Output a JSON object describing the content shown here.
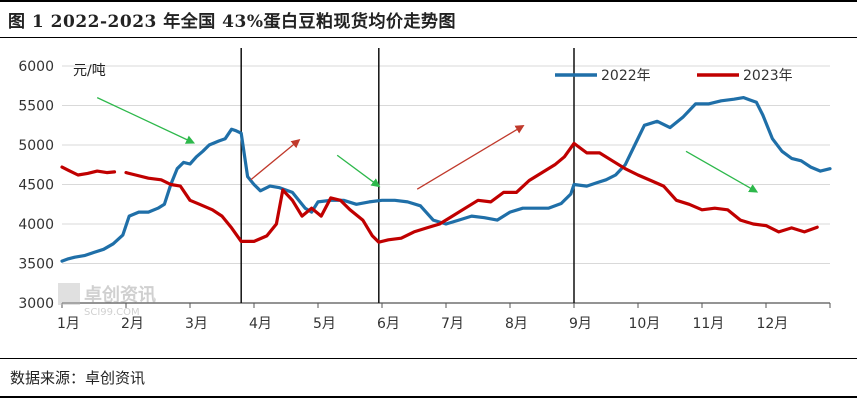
{
  "header": {
    "title": "图 1 2022-2023 年全国 43%蛋白豆粕现货均价走势图"
  },
  "footer": {
    "source": "数据来源：卓创资讯"
  },
  "watermark": {
    "brand": "卓创资讯",
    "site": "SCI99.COM"
  },
  "chart_data": {
    "type": "line",
    "ylabel": "元/吨",
    "ylim": [
      3000,
      6000
    ],
    "yticks": [
      3000,
      3500,
      4000,
      4500,
      5000,
      5500,
      6000
    ],
    "categories": [
      "1月",
      "2月",
      "3月",
      "4月",
      "5月",
      "6月",
      "7月",
      "8月",
      "9月",
      "10月",
      "11月",
      "12月"
    ],
    "xlim": [
      1,
      13
    ],
    "grid": "horizontal",
    "legend_position": "top-right",
    "vertical_markers": [
      3.8,
      5.95,
      9.0
    ],
    "colors": {
      "s2022": "#1f6fa8",
      "s2023": "#c00000",
      "arrow": "#2db84b",
      "arrow_red": "#c0392b",
      "grid": "#d9d9d9",
      "axis": "#555555"
    },
    "series": [
      {
        "name": "2022年",
        "color": "#1f6fa8",
        "x": [
          1.0,
          1.1,
          1.2,
          1.35,
          1.5,
          1.65,
          1.8,
          1.95,
          2.05,
          2.2,
          2.35,
          2.5,
          2.6,
          2.7,
          2.8,
          2.9,
          3.0,
          3.1,
          3.2,
          3.3,
          3.45,
          3.55,
          3.65,
          3.72,
          3.8,
          3.9,
          4.0,
          4.1,
          4.25,
          4.4,
          4.6,
          4.8,
          4.9,
          5.0,
          5.2,
          5.4,
          5.6,
          5.8,
          6.0,
          6.2,
          6.4,
          6.6,
          6.8,
          7.0,
          7.2,
          7.4,
          7.6,
          7.8,
          8.0,
          8.2,
          8.4,
          8.6,
          8.8,
          8.95,
          9.0,
          9.2,
          9.35,
          9.5,
          9.65,
          9.8,
          9.95,
          10.1,
          10.3,
          10.5,
          10.7,
          10.9,
          11.1,
          11.3,
          11.5,
          11.65,
          11.75,
          11.85,
          11.95,
          12.1,
          12.25,
          12.4,
          12.55,
          12.7,
          12.85,
          13.0
        ],
        "values": [
          3530,
          3560,
          3580,
          3600,
          3640,
          3680,
          3750,
          3860,
          4100,
          4150,
          4150,
          4200,
          4250,
          4500,
          4700,
          4780,
          4760,
          4850,
          4920,
          5000,
          5050,
          5080,
          5200,
          5180,
          5150,
          4600,
          4500,
          4420,
          4480,
          4460,
          4400,
          4200,
          4150,
          4280,
          4300,
          4300,
          4250,
          4280,
          4300,
          4300,
          4280,
          4230,
          4050,
          4000,
          4050,
          4100,
          4080,
          4050,
          4150,
          4200,
          4200,
          4200,
          4260,
          4380,
          4500,
          4480,
          4520,
          4560,
          4620,
          4750,
          5000,
          5250,
          5300,
          5220,
          5350,
          5520,
          5520,
          5560,
          5580,
          5600,
          5570,
          5540,
          5380,
          5080,
          4920,
          4830,
          4800,
          4720,
          4670,
          4700
        ]
      },
      {
        "name": "2023年",
        "color": "#c00000",
        "x": [
          1.0,
          1.1,
          1.25,
          1.4,
          1.55,
          1.7,
          1.82,
          null,
          2.0,
          2.15,
          2.35,
          2.55,
          2.7,
          2.85,
          3.0,
          3.15,
          3.35,
          3.5,
          3.65,
          3.8,
          4.0,
          4.2,
          4.35,
          4.45,
          4.6,
          4.75,
          4.9,
          5.05,
          5.2,
          5.35,
          5.5,
          5.7,
          5.85,
          5.95,
          6.1,
          6.3,
          6.5,
          6.7,
          6.9,
          7.1,
          7.3,
          7.5,
          7.7,
          7.9,
          8.1,
          8.3,
          8.5,
          8.7,
          8.85,
          9.0,
          9.2,
          9.4,
          9.6,
          9.8,
          10.0,
          10.2,
          10.4,
          10.6,
          10.8,
          11.0,
          11.2,
          11.4,
          11.6,
          11.8,
          12.0,
          12.2,
          12.4,
          12.6,
          12.8
        ],
        "values": [
          4720,
          4680,
          4620,
          4640,
          4670,
          4650,
          4660,
          null,
          4650,
          4620,
          4580,
          4560,
          4500,
          4480,
          4300,
          4250,
          4180,
          4100,
          3950,
          3780,
          3780,
          3850,
          4000,
          4430,
          4300,
          4100,
          4200,
          4100,
          4330,
          4300,
          4180,
          4050,
          3850,
          3770,
          3800,
          3820,
          3900,
          3950,
          4000,
          4100,
          4200,
          4300,
          4280,
          4400,
          4400,
          4550,
          4650,
          4750,
          4850,
          5020,
          4900,
          4900,
          4800,
          4700,
          4620,
          4550,
          4480,
          4300,
          4250,
          4180,
          4200,
          4180,
          4050,
          4000,
          3980,
          3900,
          3950,
          3900,
          3960
        ]
      }
    ],
    "arrows": [
      {
        "color": "green",
        "from": [
          1.55,
          5600
        ],
        "to": [
          3.05,
          5030
        ]
      },
      {
        "color": "red",
        "from": [
          3.95,
          4560
        ],
        "to": [
          4.7,
          5060
        ]
      },
      {
        "color": "green",
        "from": [
          5.3,
          4870
        ],
        "to": [
          5.95,
          4480
        ]
      },
      {
        "color": "red",
        "from": [
          6.55,
          4440
        ],
        "to": [
          8.2,
          5240
        ]
      },
      {
        "color": "green",
        "from": [
          10.75,
          4920
        ],
        "to": [
          11.85,
          4410
        ]
      }
    ]
  }
}
